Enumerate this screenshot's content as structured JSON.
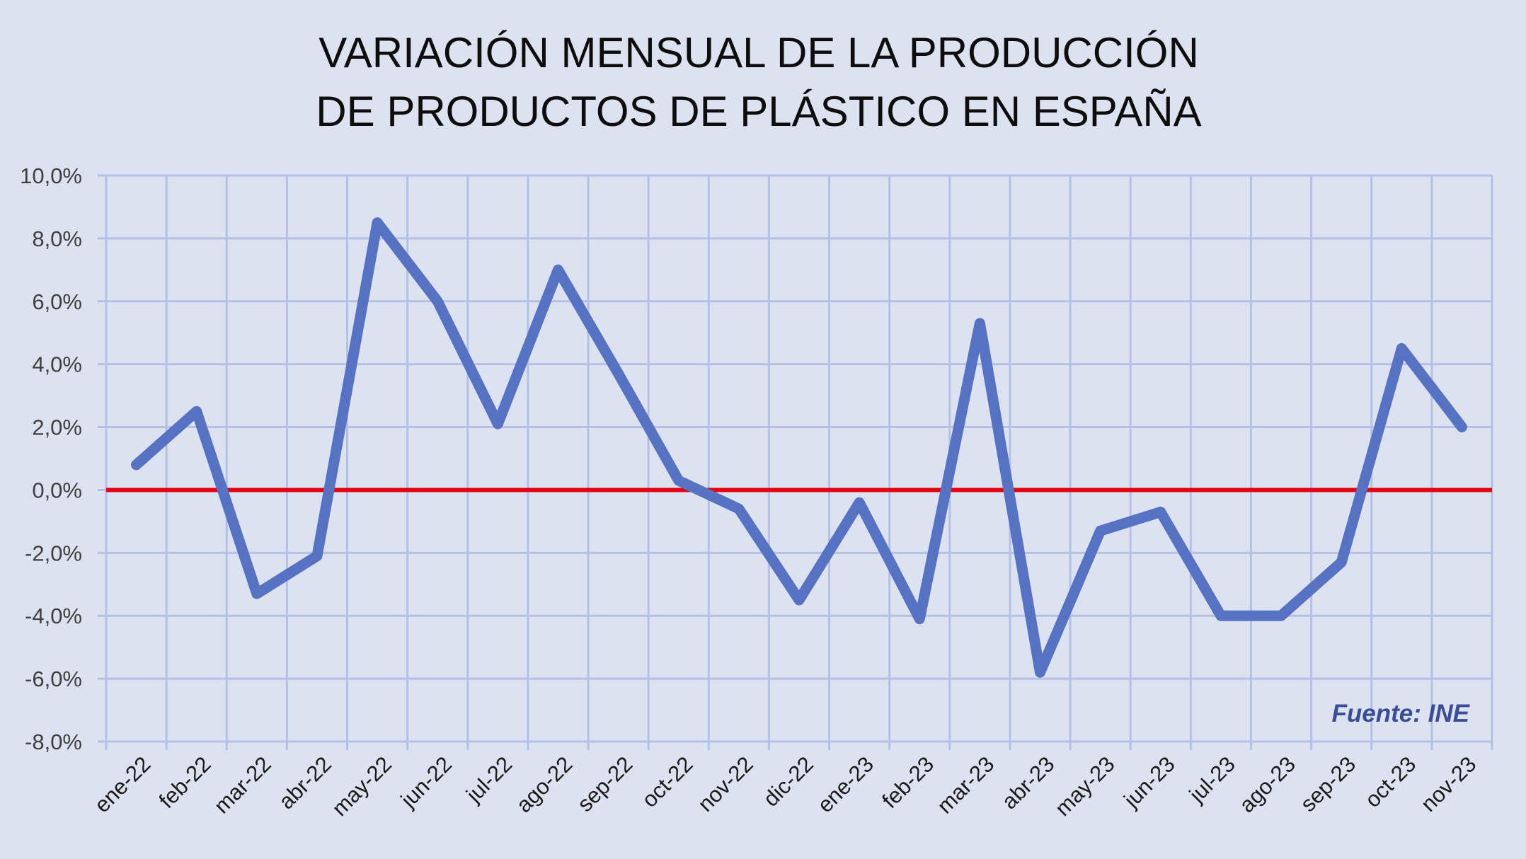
{
  "chart_data": {
    "type": "line",
    "title_lines": [
      "VARIACIÓN MENSUAL DE LA PRODUCCIÓN",
      "DE PRODUCTOS DE PLÁSTICO EN ESPAÑA"
    ],
    "categories": [
      "ene-22",
      "feb-22",
      "mar-22",
      "abr-22",
      "may-22",
      "jun-22",
      "jul-22",
      "ago-22",
      "sep-22",
      "oct-22",
      "nov-22",
      "dic-22",
      "ene-23",
      "feb-23",
      "mar-23",
      "abr-23",
      "may-23",
      "jun-23",
      "jul-23",
      "ago-23",
      "sep-23",
      "oct-23",
      "nov-23"
    ],
    "series": [
      {
        "values": [
          0.8,
          2.5,
          -3.3,
          -2.1,
          8.5,
          6.0,
          2.1,
          7.0,
          3.7,
          0.3,
          -0.6,
          -3.5,
          -0.4,
          -4.1,
          5.3,
          -5.8,
          -1.3,
          -0.7,
          -4.0,
          -4.0,
          -2.3,
          4.5,
          2.0
        ]
      }
    ],
    "y_ticks": [
      "10,0%",
      "8,0%",
      "6,0%",
      "4,0%",
      "2,0%",
      "0,0%",
      "-2,0%",
      "-4,0%",
      "-6,0%",
      "-8,0%"
    ],
    "ylim": [
      -8,
      10
    ],
    "y_step": 2,
    "reference_line": {
      "y": 0,
      "color": "#e3000f"
    },
    "series_color": "#5772c2",
    "grid": true,
    "grid_color": "#b4c0e6",
    "background_color": "#dde2f1",
    "source_label": "Fuente: INE"
  }
}
